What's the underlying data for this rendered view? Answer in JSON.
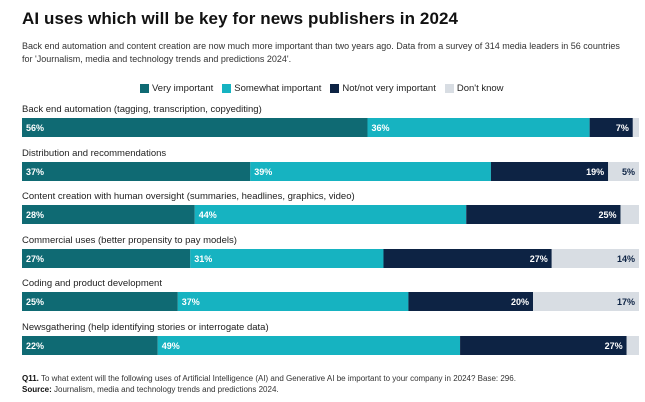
{
  "title": "AI uses which will be key for news publishers in 2024",
  "subtitle": "Back end automation and content creation are now much more important than two years ago. Data from a survey of 314 media leaders in 56 countries for 'Journalism, media and technology trends and predictions 2024'.",
  "colors": {
    "very": "#0f6a73",
    "somewhat": "#16b3c1",
    "not": "#0d2344",
    "dontknow": "#d8dde3"
  },
  "chart_data": {
    "type": "bar",
    "orientation": "horizontal",
    "stacked": true,
    "percent": true,
    "categories": [
      "Back end automation (tagging, transcription, copyediting)",
      "Distribution and recommendations",
      "Content creation with human oversight (summaries, headlines, graphics, video)",
      "Commercial uses (better propensity to pay models)",
      "Coding and product development",
      "Newsgathering (help identifying stories or interrogate data)"
    ],
    "series": [
      {
        "name": "Very important",
        "color": "#0f6a73",
        "values": [
          56,
          37,
          28,
          27,
          25,
          22
        ],
        "labels": [
          "56%",
          "37%",
          "28%",
          "27%",
          "25%",
          "22%"
        ]
      },
      {
        "name": "Somewhat important",
        "color": "#16b3c1",
        "values": [
          36,
          39,
          44,
          31,
          37,
          49
        ],
        "labels": [
          "36%",
          "39%",
          "44%",
          "31%",
          "37%",
          "49%"
        ]
      },
      {
        "name": "Not/not very important",
        "color": "#0d2344",
        "values": [
          7,
          19,
          25,
          27,
          20,
          27
        ],
        "labels": [
          "7%",
          "19%",
          "25%",
          "27%",
          "20%",
          "27%"
        ]
      },
      {
        "name": "Don't know",
        "color": "#d8dde3",
        "values": [
          1,
          5,
          3,
          14,
          17,
          2
        ],
        "labels": [
          "",
          "5%",
          "",
          "14%",
          "17%",
          ""
        ]
      }
    ],
    "legend_position": "top",
    "grid": false
  },
  "footnote": {
    "q_label": "Q11.",
    "q_text": "To what extent will the following uses of Artificial Intelligence (AI) and Generative AI be important to your company in 2024? Base: 296.",
    "source_label": "Source:",
    "source_text": "Journalism, media and technology trends and predictions 2024."
  }
}
